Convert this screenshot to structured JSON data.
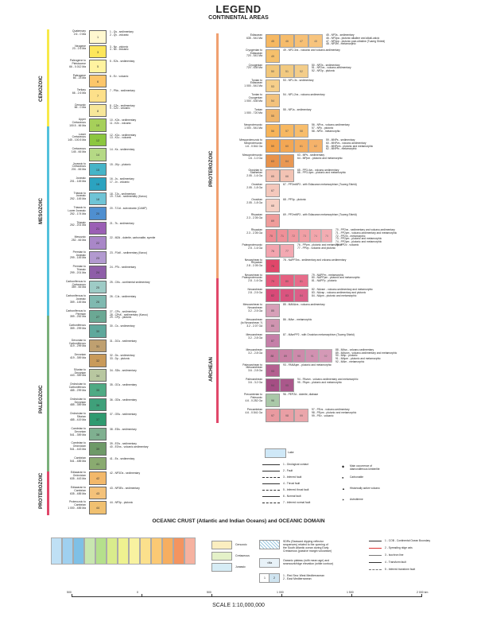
{
  "header": {
    "title": "LEGEND",
    "subtitle": "CONTINENTAL AREAS"
  },
  "eras_left": [
    "CENOZOIC",
    "MESOZOIC",
    "PALEOZOIC",
    "PROTEROZOIC"
  ],
  "eras_right": [
    "PROTEROZOIC",
    "ARCHEAN"
  ],
  "left_units": [
    {
      "age": "Quaternary\n2.6 - 0 Ma",
      "code": "1",
      "desc": "1 - Qs - sedimentary\n2 - Qv - volcanic",
      "color": "#fff8d0"
    },
    {
      "age": "Neogene\n23 - 2.6 Ma",
      "code": "3",
      "desc": "3 - Np - plutonic\n4 - Nv - volcanic",
      "color": "#fde65a"
    },
    {
      "age": "Paleogene to\nPleistocene\n66 - 0.012 Ma",
      "code": "5",
      "desc": "5 - E2s - sedimentary",
      "color": "#fff3a0"
    },
    {
      "age": "Paleogene\n66 - 23 Ma",
      "code": "6",
      "desc": "6 - Ev - volcanic",
      "color": "#fdc66a"
    },
    {
      "age": "Tertiary\n66 - 2.6 Ma",
      "code": "7",
      "desc": "7 - PNs - sedimentary",
      "color": "#fde08a"
    },
    {
      "age": "Cenozoic\n66 - 0 Ma",
      "code": "8",
      "desc": "8 - CZs - sedimentary\n9 - CZv - volcanic",
      "color": "#f7e79a"
    },
    {
      "age": "Upper\nCretaceous\n100.5 - 66 Ma",
      "code": "10",
      "desc": "10 - K2s - sedimentary\n11 - K2v - volcanic",
      "color": "#a6d05a"
    },
    {
      "age": "Lower\nCretaceous\n145 - 100.5 Ma",
      "code": "12",
      "desc": "12 - K1s - sedimentary\n13 - K1v - volcanic",
      "color": "#8cc63f"
    },
    {
      "age": "Cretaceous\n145 - 66 Ma",
      "code": "14",
      "desc": "14 - Ks - sedimentary",
      "color": "#b5d985"
    },
    {
      "age": "Jurassic to\nCretaceous\n201 - 66 Ma",
      "code": "15",
      "desc": "15 - JKp - plutonic",
      "color": "#45b4c8"
    },
    {
      "age": "Jurassic\n201 - 145 Ma",
      "code": "16",
      "desc": "16 - Js - sedimentary\n17 - Jv - volcanic",
      "color": "#2ba3c0"
    },
    {
      "age": "Triassic to\nJurassic\n252 - 145 Ma",
      "code": "18",
      "desc": "18 - TJs - sedimentary\n19 - TJsK - sedimentary (Karoo)",
      "color": "#6fc4d6"
    },
    {
      "age": "Triassic to\nLower Jurassic\n252 - 174 Ma",
      "code": "20",
      "desc": "20 - TJ1d - subvolcanic (CAMP)",
      "color": "#4f8fd0"
    },
    {
      "age": "Triassic\n252 - 201 Ma",
      "code": "21",
      "desc": "21 - Ts - sedimentary",
      "color": "#9b5fb5"
    },
    {
      "age": "Mesozoic\n252 - 66 Ma",
      "code": "22",
      "desc": "22 - MZd - dolerite, carbonatite, syenite",
      "color": "#a987c8"
    },
    {
      "age": "Permian to\nJurassic\n299 - 145 Ma",
      "code": "23",
      "desc": "23 - PJsK - sedimentary (Karoo)",
      "color": "#b29ad0"
    },
    {
      "age": "Permian to\nTriassic\n299 - 201 Ma",
      "code": "24",
      "desc": "24 - PTs - sedimentary",
      "color": "#8e5ea8"
    },
    {
      "age": "Carboniferous to\nCretaceous\n359 - 66 Ma",
      "code": "25",
      "desc": "25 - CKs - continental sedimentary",
      "color": "#9ecbc6"
    },
    {
      "age": "Carboniferous to\nJurassic\n359 - 145 Ma",
      "code": "26",
      "desc": "26 - CJs - sedimentary",
      "color": "#7fb9b0"
    },
    {
      "age": "Carboniferous to\nPermian\n359 - 252 Ma",
      "code": "27",
      "desc": "27 - CPs - sedimentary\n28 - CPsK - sedimentary (Karoo)\n29 - CPp - plutonic",
      "color": "#6ba894"
    },
    {
      "age": "Carboniferous\n359 - 299 Ma",
      "code": "30",
      "desc": "30 - Cs - sedimentary",
      "color": "#5fa89c"
    },
    {
      "age": "Devonian to\nCarboniferous\n419 - 299 Ma",
      "code": "31",
      "desc": "31 - DCs - sedimentary",
      "color": "#bfa070"
    },
    {
      "age": "Devonian\n419 - 359 Ma",
      "code": "32",
      "desc": "32 - Ds - sedimentary\n33 - Dp - plutonic",
      "color": "#c99a5a"
    },
    {
      "age": "Silurian to\nDevonian\n443 - 359 Ma",
      "code": "34",
      "desc": "34 - SDs - sedimentary",
      "color": "#b8c7a0"
    },
    {
      "age": "Ordovician to\nCarboniferous\n485 - 299 Ma",
      "code": "35",
      "desc": "35 - OCs - sedimentary",
      "color": "#4faa84"
    },
    {
      "age": "Ordovician to\nDevonian\n485 - 359 Ma",
      "code": "36",
      "desc": "36 - ODs - sedimentary",
      "color": "#3fa07a"
    },
    {
      "age": "Ordovician to\nSilurian\n485 - 419 Ma",
      "code": "37",
      "desc": "37 - OSs - sedimentary",
      "color": "#2f9a70"
    },
    {
      "age": "Cambrian to\nDevonian\n541 - 359 Ma",
      "code": "38",
      "desc": "38 - EDs - sedimentary",
      "color": "#7fb090"
    },
    {
      "age": "Cambrian to\nOrdovician\n541 - 443 Ma",
      "code": "39",
      "desc": "39 - EOs - sedimentary\n40 - EOvs - volcanic-sedimentary",
      "color": "#6e9a68"
    },
    {
      "age": "Cambrian\n541 - 485 Ma",
      "code": "41",
      "desc": "41 - Es - sedimentary",
      "color": "#8aab70"
    },
    {
      "age": "Ediacaran to\nOrdovician\n635 - 443 Ma",
      "code": "42",
      "desc": "42 - NP3Os - sedimentary",
      "color": "#f2b86a"
    },
    {
      "age": "Ediacaran to\nCambrian\n635 - 485 Ma",
      "code": "43",
      "desc": "43 - NP3Es - sedimentary",
      "color": "#f4c27a"
    },
    {
      "age": "Proterozoic to\nCambrian\n1 000 - 485 Ma",
      "code": "44",
      "desc": "44 - NP3p - plutonic",
      "color": "#f0c070"
    }
  ],
  "right_units": [
    {
      "age": "Ediacaran\n635 - 541 Ma",
      "codes": [
        "45",
        "46",
        "47",
        "48"
      ],
      "desc": "45 - NP3s - sedimentary\n46 - NP3pa - plutonic alkaline and alkali-calcic\n47 - NP3pp - plutonic post-ultraline (Tuareg Shield)\n48 - NP3m - metamorphic",
      "color": "#f6b862"
    },
    {
      "age": "Cryogenian to\nEdiacaran\n720 - 541 Ma",
      "codes": [
        "49"
      ],
      "desc": "49 - NP2-3vs - volcanic and volcano-sedimentary",
      "color": "#f5c06c"
    },
    {
      "age": "Cryogenian\n720 - 635 Ma",
      "codes": [
        "50",
        "51",
        "52"
      ],
      "desc": "50 - NP2s - sedimentary\n51 - NP2vs - volcano-sedimentary\n52 - NP2p - plutonic",
      "color": "#f2c77a"
    },
    {
      "age": "Tonian to\nEdiacaran\n1 000 - 541 Ma",
      "codes": [
        "53"
      ],
      "desc": "53 - NP1-3s - sedimentary",
      "color": "#f6cf8a"
    },
    {
      "age": "Tonian to\nCryogenian\n1 000 - 635 Ma",
      "codes": [
        "54"
      ],
      "desc": "54 - NP1-2vs - volcano-sedimentary",
      "color": "#f3c27c"
    },
    {
      "age": "Tonian\n1 000 - 720 Ma",
      "codes": [
        "55"
      ],
      "desc": "55 - NP1s - sedimentary",
      "color": "#f0b56a"
    },
    {
      "age": "Neoproterozoic\n1 000 - 541 Ma",
      "codes": [
        "56",
        "57",
        "58"
      ],
      "desc": "56 - NPvs - volcano-sedimentary\n57 - NPp - plutonic\n58 - NPm - metamorphic",
      "color": "#f7b458"
    },
    {
      "age": "Mesoproterozoic to\nNeoproterozoic\n1.6 - 0.541 Ga",
      "codes": [
        "59",
        "60",
        "61",
        "62"
      ],
      "desc": "59 - MNPs - sedimentary\n60 - MNPvs - volcano-sedimentary\n61 - MNPpm - plutonic and metamorphic\n62 - MNPm - metamorphic",
      "color": "#f3a24a"
    },
    {
      "age": "Mesoproterozoic\n1.6 - 1.0 Ga",
      "codes": [
        "63",
        "64"
      ],
      "desc": "63 - MPs - sedimentary\n64 - MPpm - plutonic and metamorphic",
      "color": "#e8924a"
    },
    {
      "age": "Orosirian to\nStatherian\n2.05 - 1.6 Ga",
      "codes": [
        "65",
        "66"
      ],
      "desc": "65 - PP3-4vs - volcano-sedimentary\n66 - PP3-4pm - plutonic and metamorphic",
      "color": "#f2c0b0"
    },
    {
      "age": "Orosirian\n2.05 - 1.8 Ga",
      "codes": [
        "67"
      ],
      "desc": "67 - PP3mNP3 - with Ediacaran metamorphism (Tuareg Shield)",
      "color": "#f4c8bc"
    },
    {
      "age": "Orosirian\n2.05 - 1.8 Ga",
      "codes": [
        "68"
      ],
      "desc": "68 - PP3p - plutonic",
      "color": "#f6d0c4"
    },
    {
      "age": "Rhyacian\n2.3 - 2.05 Ga",
      "codes": [
        "69"
      ],
      "desc": "69 - PP2mNP3 - with Ediacaran metamorphism (Tuareg Shield)",
      "color": "#ef9c9a"
    },
    {
      "age": "Rhyacian\n2.3 - 2.05 Ga",
      "codes": [
        "70",
        "71",
        "72",
        "73",
        "74",
        "75"
      ],
      "desc": "70 - PP2vs - sedimentary and volcano-sedimentary\n71 - PP2pm - volcano-sedimentary and metamorphic\n72 - PP2m - metamorphic\n73 - PP2pm - plutonic and metamorphic\n74 - PP2pm - plutonic and metamorphic\n75 - PP2v - volcanic",
      "color": "#ef8a92"
    },
    {
      "age": "Paleoproterozoic\n2.5 - 1.6 Ga",
      "codes": [
        "76",
        "77"
      ],
      "desc": "76 - PPpm - plutonic and metamorphic\n77 - PPvp - volcanic and plutonic",
      "color": "#f3a4ae"
    },
    {
      "age": "Neoarchean to\nRhyacian\n2.8 - 2.05 Ga",
      "codes": [
        "78"
      ],
      "desc": "78 - NAPP2vs - sedimentary and volcano-sedimentary",
      "color": "#e0476a"
    },
    {
      "age": "Neoarchean to\nPaleoproterozoic\n2.8 - 1.6 Ga",
      "codes": [
        "79",
        "80",
        "81"
      ],
      "desc": "79 - NAPPm - metamorphic\n80 - NAPPpm - plutonic and metamorphic\n81 - NAPPp - plutonic",
      "color": "#e4587a"
    },
    {
      "age": "Neoarchean\n2.8 - 2.5 Ga",
      "codes": [
        "82",
        "83",
        "84"
      ],
      "desc": "82 - NAvsm - volcano-sedimentary and metamorphic\n83 - NAvsp - volcano-sedimentary and plutonic\n84 - NApm - plutonic and metamorphic",
      "color": "#d84a78"
    },
    {
      "age": "Mesoarchean to\nNeoarchean\n3.2 - 2.5 Ga",
      "codes": [
        "85"
      ],
      "desc": "85 - MANAvs - volcano-sedimentary",
      "color": "#d7a0b8"
    },
    {
      "age": "Mesoarchean\n(to Neoarchean ?)\n3.2 - 2.07 Ga",
      "codes": [
        "86"
      ],
      "desc": "86 - MAm - metamorphic",
      "color": "#cf94b0"
    },
    {
      "age": "Mesoarchean\n3.2 - 2.8 Ga",
      "codes": [
        "87"
      ],
      "desc": "87 - MAmPP2 - with Orosirian metamorphism (Tuareg Shield)",
      "color": "#c57fa8"
    },
    {
      "age": "Mesoarchean\n3.2 - 2.8 Ga",
      "codes": [
        "88",
        "89",
        "90",
        "91",
        "92"
      ],
      "desc": "88 - MAvs - volcano-sedimentary\n89 - MAvsm - volcano-sedimentary and metamorphic\n90 - MAp - plutonic\n91 - MApm - plutonic and metamorphic\n92 - MAm - metamorphic",
      "color": "#c77aa0"
    },
    {
      "age": "Paleoarchean to\nMesoarchean\n3.6 - 2.8 Ga",
      "codes": [
        "93"
      ],
      "desc": "93 - PAMApm - plutonic and metamorphic",
      "color": "#b45f90"
    },
    {
      "age": "Paleoarchean\n3.6 - 3.2 Ga",
      "codes": [
        "94",
        "95"
      ],
      "desc": "94 - PAvsm - volcano-sedimentary and metamorphic\n95 - PApm - plutonic and metamorphic",
      "color": "#a54e84"
    },
    {
      "age": "Precambrian to\nPaleozoic\n4.6 - 0.252 Ga",
      "codes": [
        "96"
      ],
      "desc": "96 - PEPZd - dolerite, diabase",
      "color": "#aac8a8"
    },
    {
      "age": "Precambrian\n4.6 - 0.541 Ga",
      "codes": [
        "97",
        "98",
        "99"
      ],
      "desc": "97 - PEvs - volcano-sedimentary\n98 - PEpm - plutonic and metamorphic\n99 - PEv - volcanic",
      "color": "#e89aa0"
    }
  ],
  "other": {
    "lake": "Lake"
  },
  "symbols": [
    "1 - Geological contact",
    "2 - Fault",
    "3 - Inferred fault",
    "4 - Thrust fault",
    "5 - Inferred thrust fault",
    "6 - Normal fault",
    "7 - Inferred normal fault"
  ],
  "point_symbols": [
    "Main occurrence of\ndiamondiferous kimberlite",
    "Carbonatite",
    "Historically active volcano",
    "Astrobleme"
  ],
  "ocean": {
    "title": "OCEANIC CRUST (Atlantic and Indian Oceans) and OCEANIC DOMAIN",
    "ages": [
      "Cenozoic",
      "Cretaceous",
      "Jurassic"
    ],
    "sdr": "SDRs (Seaward dipping reflector\nsequences) related to the opening of\nthe South Atlantic ocean during Early\nCretaceous (passive margin volcanism)",
    "plateau": "Oceanic plateau (with mean age) and\nseamount/ridge elevation (white contour)",
    "seas": "1 - Red Sea: West Mediterranean\n2 - East Mediterranean",
    "lines": [
      "1 - COB - Continental Ocean Boundary",
      "2 - Spreading ridge axis",
      "3 - Isochron line",
      "4 - Transform fault",
      "5 - Inferred transform fault"
    ],
    "plateau_tag": "<Ma"
  },
  "scale": {
    "ticks": [
      "500",
      "0",
      "500",
      "1 000",
      "1 500",
      "2 000 km"
    ],
    "label": "SCALE 1:10,000,000"
  },
  "ocean_swatches": [
    "#bfe0f5",
    "#9fd0ef",
    "#7fc0e6",
    "#c8e6b0",
    "#b5e08c",
    "#d9ec8c",
    "#eef290",
    "#f8f2a0",
    "#fbe08c",
    "#fbc974",
    "#f6ae60",
    "#f49460",
    "#f6b2a0"
  ]
}
